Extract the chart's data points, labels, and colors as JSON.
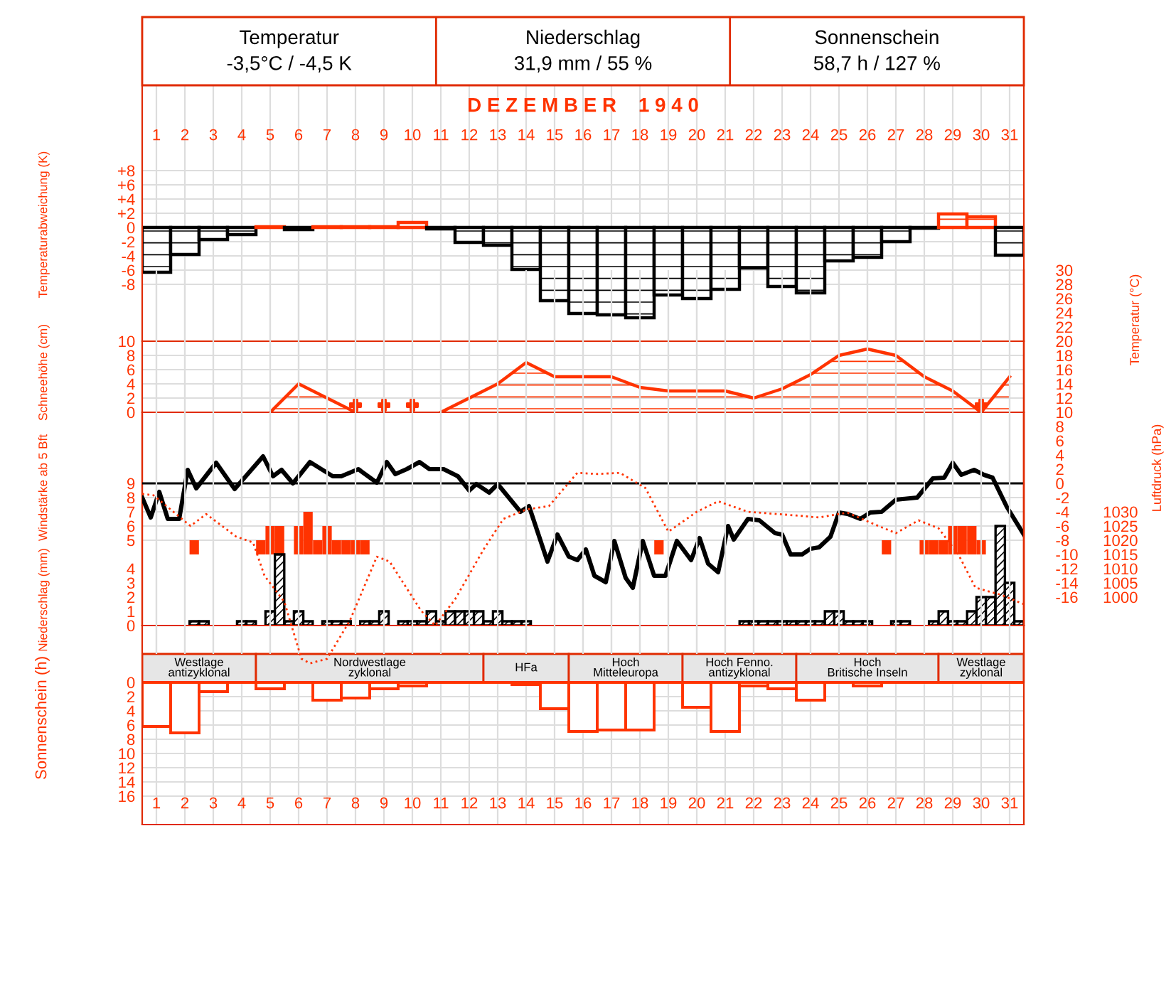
{
  "chart_data": [
    {
      "type": "other",
      "annotations": [
        "Temperatur",
        "-3,5°C / -4,5 K",
        "Niederschlag",
        "31,9 mm / 55 %",
        "Sonnenschein",
        "58,7 h / 127 %"
      ]
    },
    {
      "type": "bar",
      "title": "D E Z E M B E R    1 9 4 0",
      "ylabel": "Temperaturabweichung (K)",
      "x": [
        1,
        2,
        3,
        4,
        5,
        6,
        7,
        8,
        9,
        10,
        11,
        12,
        13,
        14,
        15,
        16,
        17,
        18,
        19,
        20,
        21,
        22,
        23,
        24,
        25,
        26,
        27,
        28,
        29,
        30,
        31
      ],
      "values": [
        -6.3,
        -3.8,
        -1.7,
        -1.0,
        0.1,
        -0.3,
        0.1,
        0.1,
        0.1,
        0.7,
        -0.2,
        -2.1,
        -2.5,
        -5.9,
        -10.3,
        -12.1,
        -12.3,
        -12.7,
        -9.5,
        -10.0,
        -8.7,
        -5.7,
        -8.3,
        -9.2,
        -4.7,
        -4.2,
        -2.0,
        -0.1,
        1.9,
        1.5,
        -3.9
      ],
      "colors": [
        "#000000",
        "#000000",
        "#000000",
        "#000000",
        "#ff3300",
        "#000000",
        "#ff3300",
        "#ff3300",
        "#ff3300",
        "#ff3300",
        "#000000",
        "#000000",
        "#000000",
        "#000000",
        "#000000",
        "#000000",
        "#000000",
        "#000000",
        "#000000",
        "#000000",
        "#000000",
        "#000000",
        "#000000",
        "#000000",
        "#000000",
        "#000000",
        "#000000",
        "#000000",
        "#ff3300",
        "#ff3300",
        "#000000"
      ],
      "xlim": [
        0.5,
        31.5
      ],
      "xticks": [
        1,
        2,
        3,
        4,
        5,
        6,
        7,
        8,
        9,
        10,
        11,
        12,
        13,
        14,
        15,
        16,
        17,
        18,
        19,
        20,
        21,
        22,
        23,
        24,
        25,
        26,
        27,
        28,
        29,
        30,
        31
      ],
      "ylim": [
        -16,
        29.6
      ],
      "yticks": [
        {
          "value": -8,
          "label": "-8"
        },
        {
          "value": -6,
          "label": "-6"
        },
        {
          "value": -4,
          "label": "-4"
        },
        {
          "value": -2,
          "label": "-2"
        },
        0,
        {
          "value": 2,
          "label": "+2"
        },
        {
          "value": 4,
          "label": "+4"
        },
        {
          "value": 6,
          "label": "+6"
        },
        {
          "value": 8,
          "label": "+8"
        }
      ],
      "grid": true
    },
    {
      "type": "area",
      "ylabel": "Schneehöhe (cm)",
      "xlim": [
        0.5,
        31.5
      ],
      "ylim": [
        0,
        10
      ],
      "yticks": [
        0,
        2,
        4,
        6,
        8,
        10
      ],
      "tick_labels": "y",
      "grid": true,
      "series": [
        {
          "type": "area",
          "color": "#ff3300",
          "x": [
            5,
            6,
            7,
            8,
            9,
            10,
            11,
            12,
            13,
            14,
            15,
            16,
            17,
            18,
            19,
            20,
            21,
            22,
            23,
            24,
            25,
            26,
            27,
            28,
            29,
            30,
            31
          ],
          "values": [
            0,
            4,
            2,
            0,
            null,
            null,
            0,
            2,
            4,
            7,
            5,
            5,
            5,
            3.5,
            3,
            3,
            3,
            2,
            3.3,
            5.3,
            8,
            8.9,
            8,
            5,
            3,
            0,
            5
          ]
        },
        {
          "type": "scatter",
          "marker": "cross",
          "color": "#ff3300",
          "x": [
            8,
            9,
            10,
            30
          ],
          "values": [
            1,
            1,
            1,
            1
          ]
        }
      ]
    },
    {
      "type": "bar",
      "ylabel": "Windstärke ab 5 Bft",
      "xlim": [
        0.5,
        31.5
      ],
      "ylim": [
        -1,
        14
      ],
      "yticks": [
        5,
        6,
        7,
        8,
        9
      ],
      "tick_labels": "y",
      "grid": true,
      "color": "#ff3300",
      "x": [
        2.33,
        4.67,
        5,
        5.33,
        6,
        6.33,
        6.67,
        7,
        7.33,
        7.67,
        8,
        8.33,
        18.67,
        26.67,
        28,
        28.33,
        28.67,
        29,
        29.33,
        29.67,
        30
      ],
      "base": [
        4,
        4,
        4,
        4,
        4,
        4,
        4,
        4,
        4,
        4,
        4,
        4,
        4,
        4,
        4,
        4,
        4,
        4,
        4,
        4,
        4
      ],
      "values": [
        1,
        1,
        2,
        2,
        2,
        3,
        1,
        2,
        1,
        1,
        1,
        1,
        1,
        1,
        1,
        1,
        1,
        2,
        2,
        2,
        1
      ]
    },
    {
      "type": "bar",
      "ylabel": "Niederschlag (mm)",
      "xlim": [
        0.5,
        31.5
      ],
      "ylim": [
        0,
        15
      ],
      "yticks": [
        0,
        1,
        2,
        3,
        4
      ],
      "tick_labels": "y",
      "color": "#000000",
      "x": [
        2.33,
        2.67,
        4,
        4.33,
        5,
        5.33,
        5.67,
        6,
        6.33,
        7,
        7.33,
        7.67,
        8.33,
        8.67,
        9,
        9.67,
        10,
        10.33,
        10.67,
        11,
        11.33,
        11.67,
        12,
        12.33,
        12.67,
        13,
        13.33,
        13.67,
        14,
        21.67,
        22,
        22.33,
        22.67,
        23,
        23.33,
        23.67,
        24,
        24.33,
        24.67,
        25,
        25.33,
        25.67,
        26,
        27,
        27.33,
        28.33,
        28.67,
        29,
        29.33,
        29.67,
        30,
        30.33,
        30.67,
        31,
        31.33
      ],
      "values": [
        0.3,
        0.3,
        0.3,
        0.3,
        1.0,
        5.0,
        0.3,
        1.0,
        0.3,
        0.3,
        0.3,
        0.3,
        0.3,
        0.3,
        1.0,
        0.3,
        0.3,
        0.3,
        1.0,
        0.3,
        1.0,
        1.0,
        1.0,
        1.0,
        0.3,
        1.0,
        0.3,
        0.3,
        0.3,
        0.3,
        0.3,
        0.3,
        0.3,
        0.3,
        0.3,
        0.3,
        0.3,
        0.3,
        1.0,
        1.0,
        0.3,
        0.3,
        0.3,
        0.3,
        0.3,
        0.3,
        1.0,
        0.3,
        0.3,
        1.0,
        2.0,
        2.0,
        7.0,
        3.0,
        0.3
      ]
    },
    {
      "type": "line",
      "y2label": "Temperatur (°C)",
      "xlim": [
        0.5,
        31.5
      ],
      "y2lim": [
        -20,
        30
      ],
      "y2ticks": [
        {
          "value": -16,
          "label": "-16"
        },
        {
          "value": -14,
          "label": "-14"
        },
        {
          "value": -12,
          "label": "-12"
        },
        {
          "value": -10,
          "label": "-10"
        },
        {
          "value": -8,
          "label": "-8"
        },
        {
          "value": -6,
          "label": "-6"
        },
        {
          "value": -4,
          "label": "-4"
        },
        {
          "value": -2,
          "label": "-2"
        },
        0,
        2,
        4,
        6,
        8,
        10,
        12,
        14,
        16,
        18,
        20,
        22,
        24,
        26,
        28,
        30
      ],
      "tick_labels": "y",
      "ref_lines": [
        {
          "axis": "y2",
          "value": 0,
          "color": "#000000"
        }
      ],
      "series": [
        {
          "axis": "y2",
          "color": "#000000",
          "x": [
            0.5,
            0.8,
            1.1,
            1.4,
            1.8,
            2.1,
            2.4,
            3.1,
            3.75,
            4.75,
            5.1,
            5.4,
            5.8,
            6.4,
            7.2,
            7.5,
            8.1,
            8.75,
            9.1,
            9.4,
            9.8,
            10.25,
            10.6,
            11.1,
            11.6,
            12,
            12.25,
            12.7,
            13,
            13.8,
            14.1,
            14.75,
            15.1,
            15.5,
            15.8,
            16.1,
            16.4,
            16.8,
            17.1,
            17.5,
            17.75,
            18.1,
            18.5,
            18.9,
            19.3,
            19.8,
            20.1,
            20.4,
            20.75,
            21.1,
            21.3,
            21.8,
            22.2,
            22.75,
            23,
            23.3,
            23.7,
            24,
            24.3,
            24.7,
            25,
            25.3,
            25.75,
            26.1,
            26.5,
            27,
            27.75,
            28.3,
            28.7,
            29,
            29.3,
            29.75,
            30.1,
            30.4,
            30.9,
            31.5
          ],
          "values": [
            -2,
            -4.8,
            -1.2,
            -5,
            -5,
            1.9,
            -0.7,
            2.9,
            -0.8,
            3.8,
            1,
            1.9,
            0,
            3,
            1,
            1,
            2,
            0.1,
            3,
            1.3,
            2,
            3,
            2,
            2,
            1,
            -1,
            -0.1,
            -1.3,
            -0.1,
            -4,
            -3.2,
            -11,
            -7.2,
            -10.3,
            -10.8,
            -9.3,
            -13,
            -13.9,
            -8.1,
            -13.3,
            -14.7,
            -8.1,
            -13,
            -13,
            -8.1,
            -10.8,
            -7.7,
            -11.3,
            -12.5,
            -6,
            -7.9,
            -5,
            -5.2,
            -7,
            -7.2,
            -10,
            -10,
            -9.2,
            -9,
            -7.5,
            -4.1,
            -4.3,
            -5,
            -4.1,
            -4,
            -2.3,
            -2,
            0.7,
            0.8,
            2.9,
            1.2,
            1.9,
            1.2,
            0.8,
            -3.3,
            -7.2
          ]
        }
      ]
    },
    {
      "type": "line",
      "y2label": "Luftdruck (hPa)",
      "xlim": [
        0.5,
        31.5
      ],
      "y2lim": [
        970,
        1115
      ],
      "y2ticks": [
        1000,
        1005,
        1010,
        1015,
        1020,
        1025,
        1030
      ],
      "tick_labels": "y",
      "line_style": "dotted",
      "grid": "x",
      "series": [
        {
          "axis": "y2",
          "color": "#ff3300",
          "x": [
            0.5,
            0.9,
            2.2,
            2.75,
            3.8,
            4.4,
            4.8,
            5.5,
            6.1,
            6.4,
            7,
            7.8,
            8.75,
            9.2,
            10.3,
            10.8,
            11.5,
            12.5,
            13.2,
            14,
            14.8,
            15.8,
            16.5,
            17.3,
            18.2,
            19,
            20,
            20.75,
            21.8,
            23.5,
            24.3,
            25.3,
            26.2,
            27,
            27.8,
            28.5,
            29.2,
            29.8,
            30.7,
            31.5
          ],
          "values": [
            1036.3,
            1035.8,
            1025,
            1029.2,
            1021.3,
            1019.2,
            1007.5,
            998.3,
            978.3,
            976.7,
            978.3,
            991.7,
            1014.2,
            1012.5,
            995.3,
            990,
            999.2,
            1016.7,
            1027.5,
            1030.8,
            1032,
            1043.7,
            1043.3,
            1043.7,
            1038.3,
            1023,
            1030,
            1033.7,
            1030,
            1028.7,
            1028,
            1029.7,
            1025.8,
            1022.5,
            1027,
            1024.2,
            1015,
            1003.3,
            1000.8,
            997.5
          ]
        }
      ]
    },
    {
      "type": "bar",
      "ylabel": "Sonnenschein (h)",
      "x": [
        1,
        2,
        3,
        4,
        5,
        6,
        7,
        8,
        9,
        10,
        11,
        12,
        13,
        14,
        15,
        16,
        17,
        18,
        19,
        20,
        21,
        22,
        23,
        24,
        25,
        26,
        27,
        28,
        29,
        30,
        31
      ],
      "values": [
        6.2,
        7.1,
        1.3,
        0,
        0.9,
        0,
        2.5,
        2.2,
        0.9,
        0.5,
        0,
        0,
        0,
        0.3,
        3.7,
        6.9,
        6.7,
        6.7,
        0,
        3.5,
        6.9,
        0.5,
        0.9,
        2.5,
        0,
        0.5,
        0,
        0,
        0,
        0,
        0
      ],
      "color": "#ff3300",
      "xlim": [
        0.5,
        31.5
      ],
      "xticks": [
        1,
        2,
        3,
        4,
        5,
        6,
        7,
        8,
        9,
        10,
        11,
        12,
        13,
        14,
        15,
        16,
        17,
        18,
        19,
        20,
        21,
        22,
        23,
        24,
        25,
        26,
        27,
        28,
        29,
        30,
        31
      ],
      "ylim": [
        20,
        -8
      ],
      "yticks": [
        0,
        2,
        4,
        6,
        8,
        10,
        12,
        14,
        16
      ],
      "grid": true,
      "bands": [
        {
          "axis": "x",
          "from": 0.5,
          "to": 4.5,
          "label": "Westlage\nantizyklonal",
          "color": "#e6e6e6"
        },
        {
          "axis": "x",
          "from": 4.5,
          "to": 12.5,
          "label": "Nordwestlage\nzyklonal",
          "color": "#e6e6e6"
        },
        {
          "axis": "x",
          "from": 12.5,
          "to": 15.5,
          "label": "HFa",
          "color": "#e6e6e6"
        },
        {
          "axis": "x",
          "from": 15.5,
          "to": 19.5,
          "label": "Hoch\nMitteleuropa",
          "color": "#e6e6e6"
        },
        {
          "axis": "x",
          "from": 19.5,
          "to": 23.5,
          "label": "Hoch Fenno.\nantizyklonal",
          "color": "#e6e6e6"
        },
        {
          "axis": "x",
          "from": 23.5,
          "to": 28.5,
          "label": "Hoch\nBritische Inseln",
          "color": "#e6e6e6"
        },
        {
          "axis": "x",
          "from": 28.5,
          "to": 31.5,
          "label": "Westlage\nzyklonal",
          "color": "#e6e6e6"
        }
      ]
    }
  ]
}
